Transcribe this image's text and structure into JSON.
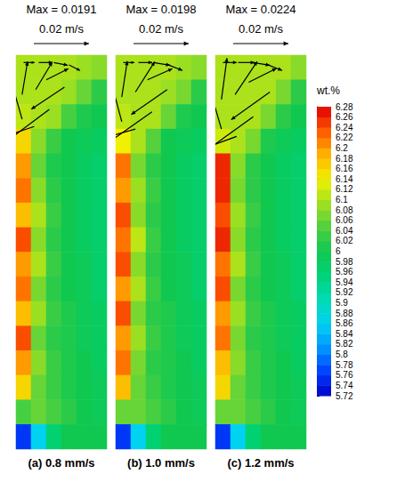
{
  "chart_data": {
    "type": "heatmap",
    "tick_labels": false,
    "reference_speed": 0.02,
    "colorbar": {
      "title": "wt.%",
      "range": [
        5.72,
        6.28
      ],
      "ticks": [
        5.72,
        5.74,
        5.76,
        5.78,
        5.8,
        5.82,
        5.84,
        5.86,
        5.88,
        5.9,
        5.92,
        5.94,
        5.96,
        5.98,
        6,
        6.02,
        6.04,
        6.06,
        6.08,
        6.1,
        6.12,
        6.14,
        6.16,
        6.18,
        6.2,
        6.22,
        6.24,
        6.26,
        6.28
      ]
    },
    "panels": [
      {
        "title": "(a) 0.8 mm/s",
        "max_text": "Max = 0.0191",
        "reference_label": "0.02 m/s",
        "cells": [
          [
            6.1,
            6.1,
            6.1,
            6.1,
            6.09,
            6.08
          ],
          [
            6.1,
            6.1,
            6.1,
            6.09,
            6.06,
            6.02
          ],
          [
            6.11,
            6.1,
            6.09,
            6.04,
            6.01,
            6.0
          ],
          [
            6.16,
            6.08,
            6.03,
            6.0,
            5.99,
            5.98
          ],
          [
            6.2,
            6.06,
            6.01,
            6.0,
            5.98,
            5.97
          ],
          [
            6.22,
            6.08,
            6.02,
            6.0,
            5.98,
            5.97
          ],
          [
            6.18,
            6.1,
            6.03,
            6.0,
            5.98,
            5.97
          ],
          [
            6.24,
            6.08,
            6.02,
            6.0,
            5.98,
            5.97
          ],
          [
            6.2,
            6.1,
            6.03,
            6.0,
            5.99,
            5.97
          ],
          [
            6.22,
            6.07,
            6.02,
            6.0,
            5.99,
            5.97
          ],
          [
            6.18,
            6.09,
            6.03,
            6.01,
            5.99,
            5.98
          ],
          [
            6.24,
            6.06,
            6.02,
            6.01,
            5.99,
            5.98
          ],
          [
            6.2,
            6.08,
            6.03,
            6.01,
            6.0,
            5.98
          ],
          [
            6.16,
            6.06,
            6.03,
            6.01,
            6.0,
            5.99
          ],
          [
            6.04,
            6.06,
            6.04,
            6.02,
            6.0,
            5.99
          ],
          [
            5.76,
            5.86,
            5.96,
            6.0,
            6.0,
            6.0
          ]
        ],
        "vectors": [
          [
            0.5,
            0.3,
            0.004,
            0
          ],
          [
            1.5,
            0.3,
            0.005,
            0
          ],
          [
            2.5,
            0.3,
            0.005,
            -0.001
          ],
          [
            3.5,
            0.4,
            0.004,
            -0.002
          ],
          [
            3.2,
            1.3,
            -0.012,
            -0.008
          ],
          [
            2.2,
            2.2,
            -0.016,
            -0.012
          ],
          [
            1.2,
            2.9,
            -0.018,
            -0.006
          ],
          [
            0.4,
            2.6,
            -0.004,
            0.014
          ],
          [
            0.4,
            1.6,
            0.002,
            0.012
          ],
          [
            1.3,
            1.4,
            0.006,
            0.01
          ],
          [
            2.0,
            1.0,
            0.008,
            0.004
          ]
        ]
      },
      {
        "title": "(b) 1.0 mm/s",
        "max_text": "Max = 0.0198",
        "reference_label": "0.02 m/s",
        "cells": [
          [
            6.1,
            6.1,
            6.1,
            6.1,
            6.09,
            6.08
          ],
          [
            6.1,
            6.1,
            6.1,
            6.09,
            6.07,
            6.02
          ],
          [
            6.11,
            6.1,
            6.1,
            6.06,
            6.01,
            6.0
          ],
          [
            6.14,
            6.1,
            6.05,
            6.0,
            5.99,
            5.98
          ],
          [
            6.22,
            6.07,
            6.02,
            6.0,
            5.98,
            5.97
          ],
          [
            6.2,
            6.09,
            6.03,
            6.0,
            5.98,
            5.97
          ],
          [
            6.24,
            6.08,
            6.02,
            6.0,
            5.98,
            5.97
          ],
          [
            6.22,
            6.11,
            6.03,
            6.0,
            5.98,
            5.97
          ],
          [
            6.24,
            6.08,
            6.02,
            6.0,
            5.99,
            5.97
          ],
          [
            6.2,
            6.1,
            6.03,
            6.0,
            5.99,
            5.97
          ],
          [
            6.24,
            6.07,
            6.02,
            6.01,
            5.99,
            5.98
          ],
          [
            6.2,
            6.09,
            6.03,
            6.01,
            5.99,
            5.98
          ],
          [
            6.22,
            6.07,
            6.02,
            6.01,
            6.0,
            5.98
          ],
          [
            6.18,
            6.06,
            6.03,
            6.01,
            6.0,
            5.99
          ],
          [
            6.06,
            6.06,
            6.04,
            6.02,
            6.0,
            5.99
          ],
          [
            5.76,
            5.86,
            5.96,
            6.0,
            6.0,
            6.0
          ]
        ],
        "vectors": [
          [
            0.5,
            0.3,
            0.004,
            0
          ],
          [
            1.5,
            0.3,
            0.005,
            0
          ],
          [
            2.5,
            0.3,
            0.006,
            -0.001
          ],
          [
            3.5,
            0.4,
            0.005,
            -0.002
          ],
          [
            3.4,
            1.4,
            -0.013,
            -0.009
          ],
          [
            2.4,
            2.3,
            -0.017,
            -0.012
          ],
          [
            1.3,
            3.0,
            -0.019,
            -0.0055
          ],
          [
            0.4,
            2.7,
            -0.004,
            0.015
          ],
          [
            0.4,
            1.7,
            0.002,
            0.013
          ],
          [
            1.3,
            1.5,
            0.007,
            0.011
          ],
          [
            2.1,
            1.0,
            0.009,
            0.004
          ]
        ]
      },
      {
        "title": "(c) 1.2 mm/s",
        "max_text": "Max = 0.0224",
        "reference_label": "0.02 m/s",
        "cells": [
          [
            6.1,
            6.1,
            6.1,
            6.1,
            6.1,
            6.08
          ],
          [
            6.1,
            6.1,
            6.1,
            6.1,
            6.07,
            6.02
          ],
          [
            6.1,
            6.1,
            6.1,
            6.07,
            6.02,
            6.0
          ],
          [
            6.12,
            6.1,
            6.07,
            6.01,
            5.99,
            5.98
          ],
          [
            6.26,
            6.08,
            6.02,
            6.0,
            5.98,
            5.97
          ],
          [
            6.26,
            6.07,
            6.02,
            6.0,
            5.98,
            5.97
          ],
          [
            6.24,
            6.09,
            6.03,
            6.0,
            5.98,
            5.97
          ],
          [
            6.26,
            6.08,
            6.02,
            6.0,
            5.98,
            5.97
          ],
          [
            6.22,
            6.1,
            6.03,
            6.0,
            5.99,
            5.97
          ],
          [
            6.24,
            6.07,
            6.02,
            6.0,
            5.99,
            5.97
          ],
          [
            6.2,
            6.09,
            6.03,
            6.01,
            5.99,
            5.98
          ],
          [
            6.22,
            6.07,
            6.02,
            6.01,
            5.99,
            5.98
          ],
          [
            6.18,
            6.08,
            6.03,
            6.01,
            6.0,
            5.98
          ],
          [
            6.16,
            6.06,
            6.03,
            6.01,
            6.0,
            5.99
          ],
          [
            6.06,
            6.06,
            6.04,
            6.02,
            6.0,
            5.99
          ],
          [
            5.76,
            5.86,
            5.96,
            6.0,
            6.0,
            6.0
          ]
        ],
        "vectors": [
          [
            0.5,
            0.3,
            0.005,
            0
          ],
          [
            1.5,
            0.3,
            0.006,
            0
          ],
          [
            2.5,
            0.3,
            0.006,
            -0.001
          ],
          [
            3.5,
            0.4,
            0.005,
            -0.002
          ],
          [
            3.6,
            1.5,
            -0.014,
            -0.01
          ],
          [
            2.5,
            2.5,
            -0.018,
            -0.013
          ],
          [
            1.4,
            3.3,
            -0.021,
            -0.0078
          ],
          [
            0.4,
            3.0,
            -0.005,
            0.017
          ],
          [
            0.4,
            1.8,
            0.002,
            0.015
          ],
          [
            1.3,
            1.6,
            0.008,
            0.012
          ],
          [
            2.2,
            1.1,
            0.01,
            0.005
          ]
        ]
      }
    ]
  }
}
